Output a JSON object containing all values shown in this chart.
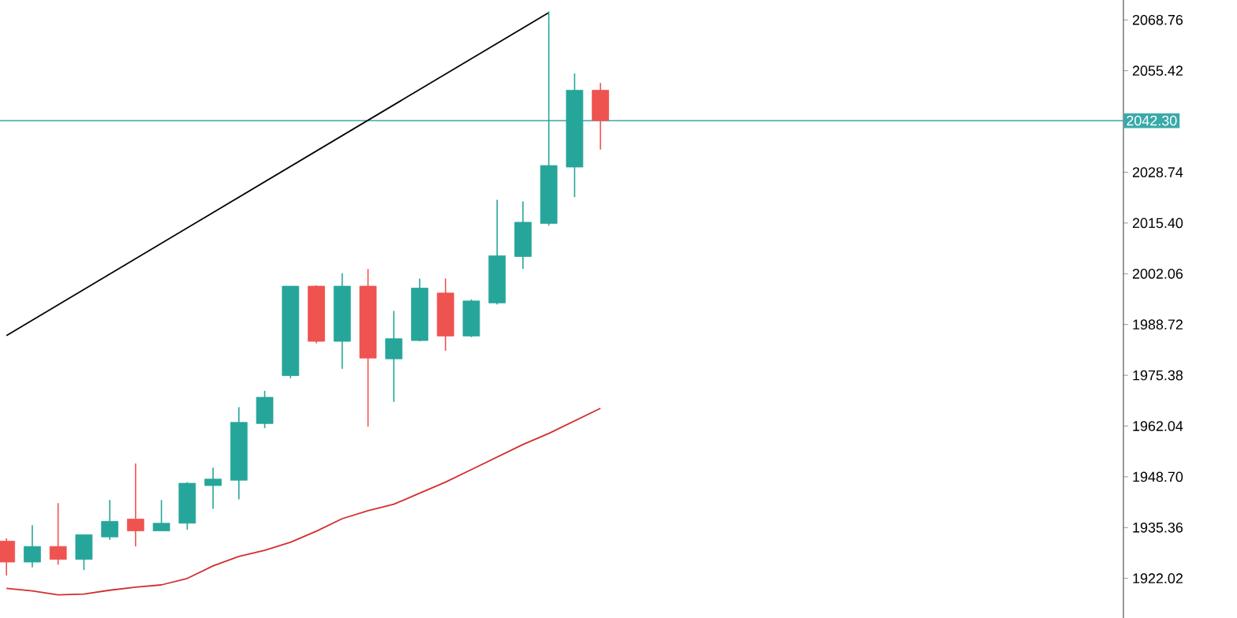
{
  "chart_data": {
    "type": "candlestick",
    "categories": [
      null,
      null,
      null,
      null,
      null,
      null,
      null,
      null,
      null,
      null,
      null,
      null,
      null,
      null,
      null,
      null,
      null,
      null,
      null,
      null,
      null,
      null,
      null,
      null
    ],
    "ohlc": [
      [
        1931.8,
        1932.5,
        1922.8,
        1926.3
      ],
      [
        1926.3,
        1936.0,
        1924.9,
        1930.4
      ],
      [
        1930.4,
        1941.8,
        1925.6,
        1927.0
      ],
      [
        1927.0,
        1933.5,
        1924.2,
        1933.5
      ],
      [
        1932.9,
        1942.6,
        1932.1,
        1937.0
      ],
      [
        1937.6,
        1952.2,
        1930.4,
        1934.5
      ],
      [
        1934.5,
        1942.6,
        1934.5,
        1936.5
      ],
      [
        1936.5,
        1947.3,
        1934.8,
        1947.0
      ],
      [
        1946.4,
        1951.1,
        1940.3,
        1948.1
      ],
      [
        1947.8,
        1967.0,
        1942.8,
        1963.0
      ],
      [
        1962.7,
        1971.3,
        1961.5,
        1969.6
      ],
      [
        1975.3,
        1998.8,
        1974.6,
        1998.8
      ],
      [
        1998.8,
        1999.0,
        1983.8,
        1984.3
      ],
      [
        1984.3,
        2002.2,
        1977.1,
        1998.8
      ],
      [
        1998.8,
        2003.3,
        1961.9,
        1979.9
      ],
      [
        1979.7,
        1992.3,
        1968.4,
        1985.0
      ],
      [
        1984.5,
        2000.8,
        1984.3,
        1998.3
      ],
      [
        1997.0,
        2000.8,
        1981.8,
        1985.7
      ],
      [
        1985.7,
        1995.3,
        1985.4,
        1994.9
      ],
      [
        1994.4,
        2021.5,
        1994.0,
        2006.8
      ],
      [
        2006.6,
        2021.1,
        2003.3,
        2015.6
      ],
      [
        2015.3,
        2071.0,
        2014.7,
        2030.5
      ],
      [
        2030.1,
        2054.7,
        2022.2,
        2050.3
      ],
      [
        2050.3,
        2052.2,
        2034.7,
        2042.3
      ]
    ],
    "colors": [
      "#ef5350",
      "#26a69a",
      "#ef5350",
      "#26a69a",
      "#26a69a",
      "#ef5350",
      "#26a69a",
      "#26a69a",
      "#26a69a",
      "#26a69a",
      "#26a69a",
      "#26a69a",
      "#ef5350",
      "#26a69a",
      "#ef5350",
      "#26a69a",
      "#26a69a",
      "#ef5350",
      "#26a69a",
      "#26a69a",
      "#26a69a",
      "#26a69a",
      "#26a69a",
      "#ef5350"
    ],
    "series": [
      {
        "type": "line",
        "color": "#000000",
        "values": [
          1985.8,
          null,
          null,
          null,
          null,
          null,
          null,
          null,
          null,
          null,
          null,
          null,
          null,
          null,
          null,
          null,
          null,
          null,
          null,
          null,
          null,
          2070.7,
          null,
          null
        ]
      },
      {
        "type": "line",
        "color": "#d32f2f",
        "values": [
          1919.4,
          1918.7,
          1917.7,
          1917.9,
          1918.9,
          1919.7,
          1920.3,
          1922.0,
          1925.3,
          1927.8,
          1929.4,
          1931.5,
          1934.4,
          1937.7,
          1939.8,
          1941.5,
          1944.4,
          1947.3,
          1950.6,
          1953.9,
          1957.2,
          1960.1,
          1963.4,
          1966.7
        ]
      }
    ],
    "ylim": [
      1911.6,
      2074.0
    ],
    "yticks": [
      2068.76,
      2055.42,
      2028.74,
      {
        "value": 2015.4,
        "label": "2015.40"
      },
      2002.06,
      1988.72,
      1975.38,
      1962.04,
      {
        "value": 1948.7,
        "label": "1948.70"
      },
      1935.36,
      1922.02
    ],
    "ref_lines": [
      {
        "axis": "y",
        "value": 2042.3,
        "label": "2042.30",
        "color": "#3aa9a9"
      }
    ],
    "grid": false
  }
}
